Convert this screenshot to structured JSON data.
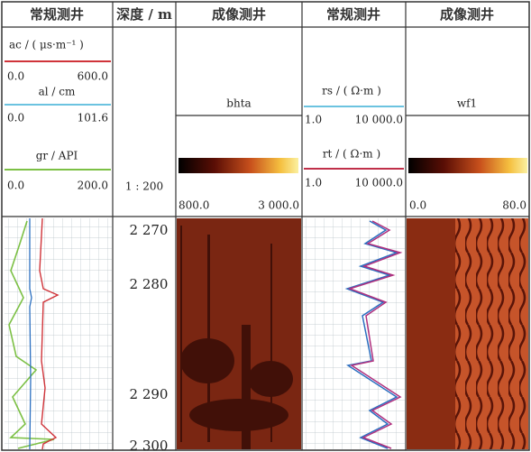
{
  "headers": [
    "常规测井",
    "深度 / m",
    "成像测井",
    "常规测井",
    "成像测井"
  ],
  "conventional_left": {
    "curves": [
      {
        "name": "ac / ( μs·m⁻¹ )",
        "min": "0.0",
        "max": "600.0"
      },
      {
        "name": "al / cm",
        "min": "0.0",
        "max": "101.6"
      },
      {
        "name": "gr / API",
        "min": "0.0",
        "max": "200.0"
      }
    ]
  },
  "depth": {
    "scale": "1 : 200",
    "labels": [
      "2 270",
      "2 280",
      "2 290",
      "2 300"
    ]
  },
  "image_left": {
    "name": "bhta",
    "min": "800.0",
    "max": "3 000.0"
  },
  "conventional_right": {
    "curves": [
      {
        "name": "rs / ( Ω·m )",
        "min": "1.0",
        "max": "10 000.0"
      },
      {
        "name": "rt / ( Ω·m )",
        "min": "1.0",
        "max": "10 000.0"
      }
    ]
  },
  "image_right": {
    "name": "wf1",
    "min": "0.0",
    "max": "80.0"
  }
}
